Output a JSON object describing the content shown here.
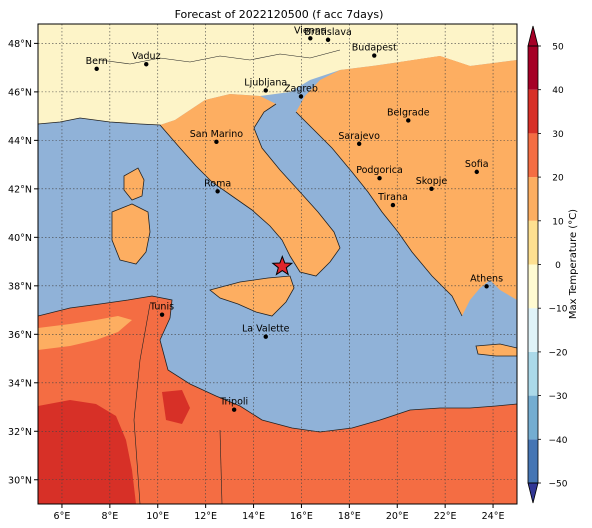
{
  "title": "Forecast of 2022120500 (f acc 7days)",
  "map": {
    "lon_range": [
      5,
      25
    ],
    "lat_range": [
      29,
      48.8
    ],
    "lon_ticks": [
      {
        "value": 6,
        "label": "6°E"
      },
      {
        "value": 8,
        "label": "8°E"
      },
      {
        "value": 10,
        "label": "10°E"
      },
      {
        "value": 12,
        "label": "12°E"
      },
      {
        "value": 14,
        "label": "14°E"
      },
      {
        "value": 16,
        "label": "16°E"
      },
      {
        "value": 18,
        "label": "18°E"
      },
      {
        "value": 20,
        "label": "20°E"
      },
      {
        "value": 22,
        "label": "22°E"
      },
      {
        "value": 24,
        "label": "24°E"
      }
    ],
    "lat_ticks": [
      {
        "value": 30,
        "label": "30°N"
      },
      {
        "value": 32,
        "label": "32°N"
      },
      {
        "value": 34,
        "label": "34°N"
      },
      {
        "value": 36,
        "label": "36°N"
      },
      {
        "value": 38,
        "label": "38°N"
      },
      {
        "value": 40,
        "label": "40°N"
      },
      {
        "value": 42,
        "label": "42°N"
      },
      {
        "value": 44,
        "label": "44°N"
      },
      {
        "value": 46,
        "label": "46°N"
      },
      {
        "value": 48,
        "label": "48°N"
      }
    ],
    "cities": [
      {
        "name": "Bern",
        "lon": 7.45,
        "lat": 46.95
      },
      {
        "name": "Vaduz",
        "lon": 9.52,
        "lat": 47.14
      },
      {
        "name": "Vienna",
        "lon": 16.37,
        "lat": 48.21
      },
      {
        "name": "Bratislava",
        "lon": 17.11,
        "lat": 48.15
      },
      {
        "name": "Budapest",
        "lon": 19.04,
        "lat": 47.5
      },
      {
        "name": "Ljubljana",
        "lon": 14.51,
        "lat": 46.06
      },
      {
        "name": "Zagreb",
        "lon": 15.98,
        "lat": 45.81
      },
      {
        "name": "Belgrade",
        "lon": 20.46,
        "lat": 44.82
      },
      {
        "name": "San Marino",
        "lon": 12.45,
        "lat": 43.94
      },
      {
        "name": "Sarajevo",
        "lon": 18.41,
        "lat": 43.86
      },
      {
        "name": "Sofia",
        "lon": 23.32,
        "lat": 42.7
      },
      {
        "name": "Podgorica",
        "lon": 19.26,
        "lat": 42.44
      },
      {
        "name": "Skopje",
        "lon": 21.43,
        "lat": 42.0
      },
      {
        "name": "Roma",
        "lon": 12.5,
        "lat": 41.9
      },
      {
        "name": "Tirana",
        "lon": 19.82,
        "lat": 41.33
      },
      {
        "name": "Athens",
        "lon": 23.73,
        "lat": 37.98
      },
      {
        "name": "Tunis",
        "lon": 10.18,
        "lat": 36.81
      },
      {
        "name": "La Valette",
        "lon": 14.51,
        "lat": 35.9
      },
      {
        "name": "Tripoli",
        "lon": 13.19,
        "lat": 32.89
      }
    ],
    "epicenter": {
      "lon": 15.2,
      "lat": 38.8
    }
  },
  "colorbar": {
    "label": "Max Temperature (°C)",
    "levels": [
      -50,
      -40,
      -30,
      -20,
      -10,
      0,
      10,
      20,
      30,
      40,
      50
    ],
    "colors": [
      "#313695",
      "#4575b4",
      "#74add1",
      "#abd9e9",
      "#e0f3f8",
      "#fffbd2",
      "#fee090",
      "#fdae61",
      "#f46d43",
      "#d73027",
      "#a50026"
    ]
  },
  "colors": {
    "sea": "#90b2d8",
    "land_warm": "#fdae61",
    "land_mild": "#fdf4c8",
    "land_hot": "#f46d43",
    "land_hotter": "#d73027",
    "star": "#e3252b"
  }
}
